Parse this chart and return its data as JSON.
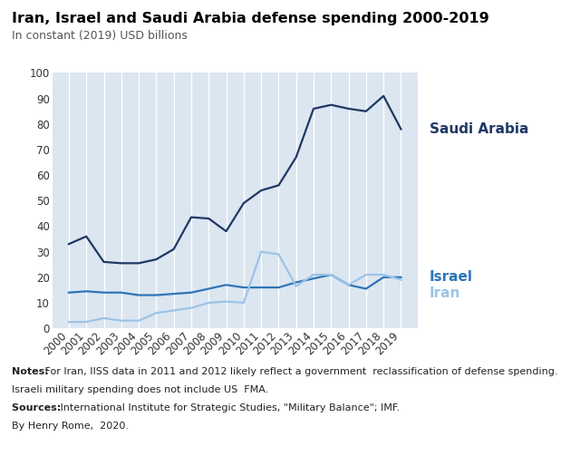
{
  "title": "Iran, Israel and Saudi Arabia defense spending 2000-2019",
  "subtitle": "In constant (2019) USD billions",
  "years": [
    2000,
    2001,
    2002,
    2003,
    2004,
    2005,
    2006,
    2007,
    2008,
    2009,
    2010,
    2011,
    2012,
    2013,
    2014,
    2015,
    2016,
    2017,
    2018,
    2019
  ],
  "saudi_arabia": [
    33,
    36,
    26,
    25.5,
    25.5,
    27,
    31,
    43.5,
    43,
    38,
    49,
    54,
    56,
    67,
    86,
    87.5,
    86,
    85,
    91,
    78
  ],
  "israel": [
    14,
    14.5,
    14,
    14,
    13,
    13,
    13.5,
    14,
    15.5,
    17,
    16,
    16,
    16,
    18,
    19.5,
    21,
    17,
    15.5,
    20,
    20
  ],
  "iran": [
    2.5,
    2.5,
    4,
    3,
    3,
    6,
    7,
    8,
    10,
    10.5,
    10,
    30,
    29,
    16.5,
    21,
    21,
    17,
    21,
    21,
    19
  ],
  "saudi_color": "#1f3864",
  "israel_color": "#2e75b6",
  "iran_color": "#9dc3e6",
  "bg_color": "#dce6f1",
  "ylim": [
    0,
    100
  ],
  "yticks": [
    0,
    10,
    20,
    30,
    40,
    50,
    60,
    70,
    80,
    90,
    100
  ],
  "notes_bold": "Notes:",
  "notes_rest1": " For Iran, IISS data in 2011 and 2012 likely reflect a government  reclassification of defense spending.",
  "notes_line2": "Israeli military spending does not include US  FMA.",
  "sources_bold": "Sources: ",
  "sources_rest": " International Institute for Strategic Studies, \"Military Balance\"; IMF.",
  "author_line": "By Henry Rome,  2020.",
  "label_saudi": "Saudi Arabia",
  "label_israel": "Israel",
  "label_iran": "Iran"
}
